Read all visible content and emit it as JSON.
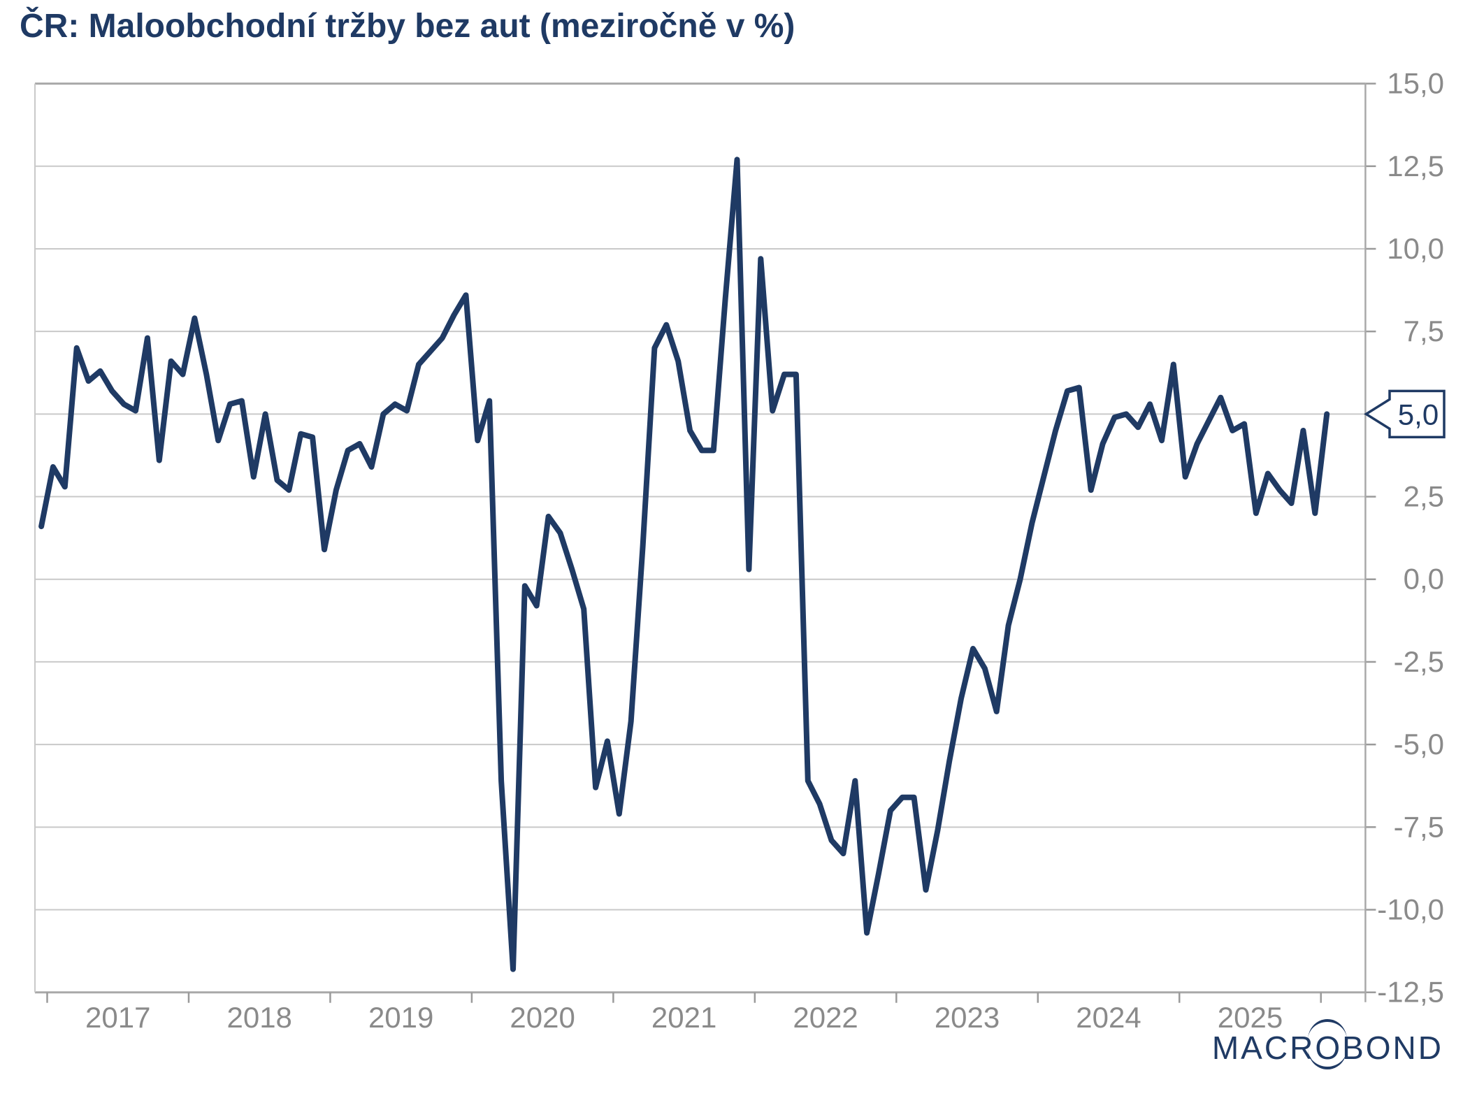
{
  "title": "ČR: Maloobchodní tržby bez aut (meziročně v %)",
  "callout": {
    "label": "5,0",
    "value": 5.0
  },
  "logo": {
    "part1": "MACR",
    "part2": "O",
    "part3": "BOND"
  },
  "colors": {
    "line": "#1f3a64",
    "title": "#1f3a64",
    "grid": "#c9c9c9",
    "axis": "#a9a9a9",
    "tick": "#9a9a9a",
    "tick_label": "#8a8a8a",
    "callout_border": "#1f3a64",
    "background": "#ffffff"
  },
  "y_axis": {
    "labels": [
      "15,0",
      "12,5",
      "10,0",
      "7,5",
      "5,0",
      "2,5",
      "0,0",
      "-2,5",
      "-5,0",
      "-7,5",
      "-10,0",
      "-12,5"
    ],
    "values": [
      15,
      12.5,
      10,
      7.5,
      5,
      2.5,
      0,
      -2.5,
      -5,
      -7.5,
      -10,
      -12.5
    ],
    "side": "right"
  },
  "x_axis": {
    "year_labels": [
      "2017",
      "2018",
      "2019",
      "2020",
      "2021",
      "2022",
      "2023",
      "2024",
      "2025"
    ],
    "tick_years": [
      2017,
      2018,
      2019,
      2020,
      2021,
      2022,
      2023,
      2024,
      2025,
      2026
    ]
  },
  "chart_data": {
    "type": "line",
    "title": "ČR: Maloobchodní tržby bez aut (meziročně v %)",
    "series_name": "Maloobchodní tržby bez aut, meziročně v %",
    "frequency": "monthly",
    "start_month": "2016-12",
    "end_month": "2026-01",
    "values": [
      1.6,
      3.4,
      2.8,
      7.0,
      6.0,
      6.3,
      5.7,
      5.3,
      5.1,
      7.3,
      3.6,
      6.6,
      6.2,
      7.9,
      6.2,
      4.2,
      5.3,
      5.4,
      3.1,
      5.0,
      3.0,
      2.7,
      4.4,
      4.3,
      0.9,
      2.7,
      3.9,
      4.1,
      3.4,
      5.0,
      5.3,
      5.1,
      6.5,
      6.9,
      7.3,
      8.0,
      8.6,
      4.2,
      5.4,
      -6.1,
      -11.8,
      -0.2,
      -0.8,
      1.9,
      1.4,
      0.3,
      -0.9,
      -6.3,
      -4.9,
      -7.1,
      -4.3,
      1.0,
      7.0,
      7.7,
      6.6,
      4.5,
      3.9,
      3.9,
      8.5,
      12.7,
      0.3,
      9.7,
      5.1,
      6.2,
      6.2,
      -6.1,
      -6.8,
      -7.9,
      -8.3,
      -6.1,
      -10.7,
      -8.9,
      -7.0,
      -6.6,
      -6.6,
      -9.4,
      -7.6,
      -5.5,
      -3.6,
      -2.1,
      -2.7,
      -4.0,
      -1.4,
      0.0,
      1.7,
      3.1,
      4.5,
      5.7,
      5.8,
      2.7,
      4.1,
      4.9,
      5.0,
      4.6,
      5.3,
      4.2,
      6.5,
      3.1,
      4.1,
      4.8,
      5.5,
      4.5,
      4.7,
      2.0,
      3.2,
      2.7,
      2.3,
      4.5,
      2.0,
      5.0
    ],
    "ylim": [
      -12.5,
      15
    ],
    "y_step": 2.5,
    "xlabel": "",
    "ylabel": "",
    "grid": "horizontal",
    "legend": "none",
    "axis_position": "right",
    "last_value_annotation": "5,0"
  }
}
